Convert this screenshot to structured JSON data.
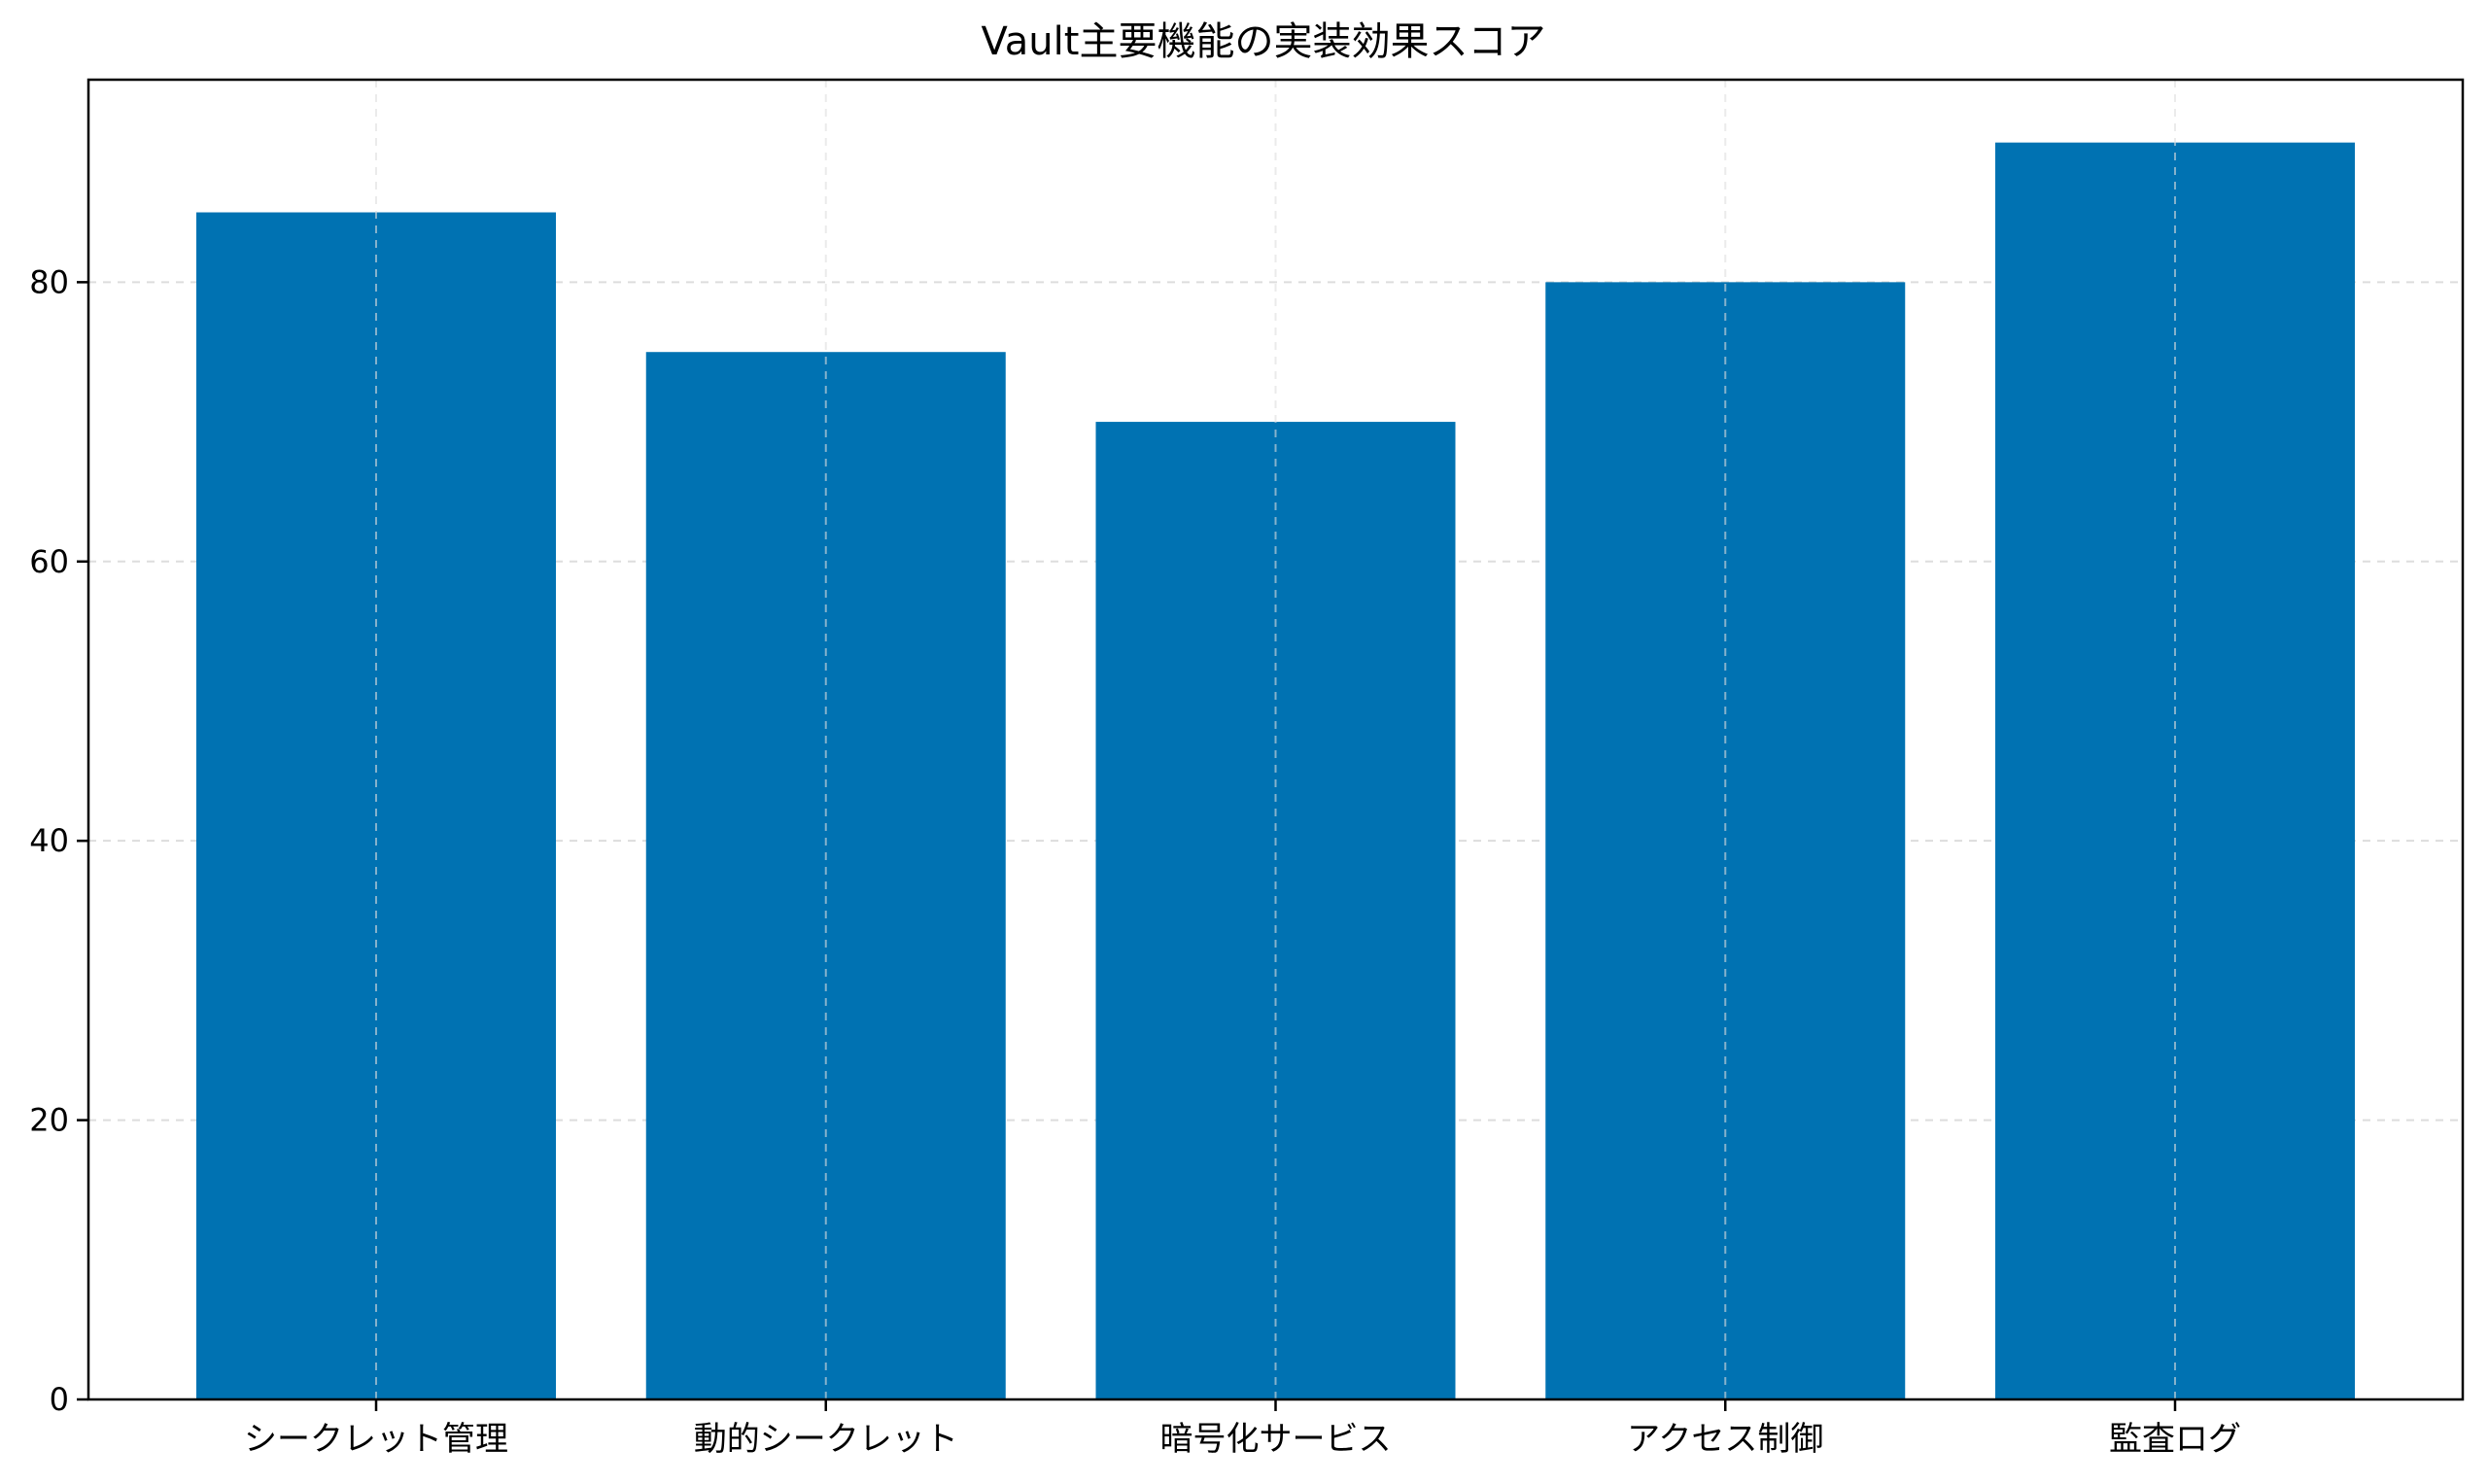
{
  "chart_data": {
    "type": "bar",
    "title": "Vault主要機能の実装効果スコア",
    "xlabel": "",
    "ylabel": "",
    "categories": [
      "シークレット管理",
      "動的シークレット",
      "暗号化サービス",
      "アクセス制御",
      "監査ログ"
    ],
    "values": [
      85,
      75,
      70,
      80,
      90
    ],
    "ylim": [
      0,
      94.5
    ],
    "yticks": [
      0,
      20,
      40,
      60,
      80
    ],
    "grid": true,
    "grid_style": "dashed",
    "legend": null,
    "bar_color": "#0072B2"
  },
  "colors": {
    "bar": "#0072B2",
    "grid": "#dddddd",
    "axis": "#000000"
  }
}
